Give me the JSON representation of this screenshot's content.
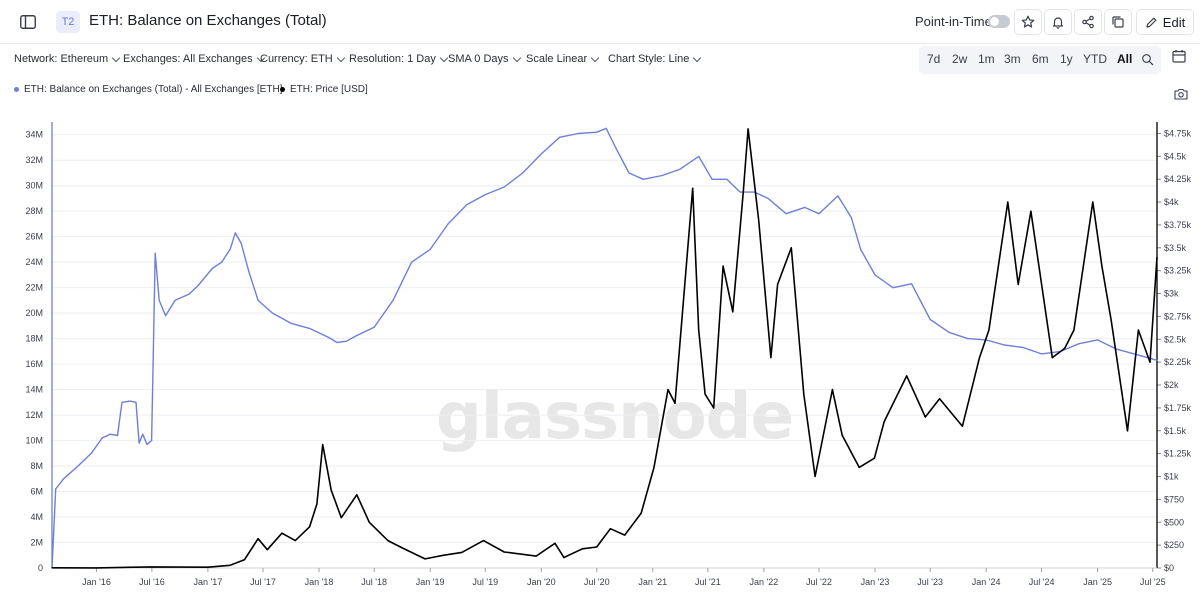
{
  "header": {
    "tier_badge": "T2",
    "title": "ETH: Balance on Exchanges (Total)",
    "point_in_time_label": "Point-in-Time",
    "point_in_time_enabled": false,
    "edit_label": "Edit"
  },
  "toolbar": {
    "filters": [
      {
        "key": "network",
        "label": "Network: Ethereum"
      },
      {
        "key": "exchanges",
        "label": "Exchanges: All Exchanges"
      },
      {
        "key": "currency",
        "label": "Currency: ETH"
      },
      {
        "key": "resolution",
        "label": "Resolution: 1 Day"
      },
      {
        "key": "sma",
        "label": "SMA 0 Days"
      },
      {
        "key": "scale",
        "label": "Scale Linear"
      },
      {
        "key": "chart_style",
        "label": "Chart Style: Line"
      }
    ],
    "ranges": [
      "7d",
      "2w",
      "1m",
      "3m",
      "6m",
      "1y",
      "YTD",
      "All"
    ],
    "active_range": "All"
  },
  "legend": [
    {
      "label": "ETH: Balance on Exchanges (Total) - All Exchanges [ETH]",
      "color": "#6f7fd8"
    },
    {
      "label": "ETH: Price [USD]",
      "color": "#000000"
    }
  ],
  "watermark": "glassnode",
  "colors": {
    "balance": "#6f7fd8",
    "price": "#000000",
    "grid": "#eceef2",
    "axis_text": "#3a3f4a"
  },
  "chart_data": {
    "type": "line",
    "x_start": "2015-08-08",
    "x_end": "2025-07-15",
    "x_ticks": [
      "Jan '16",
      "Jul '16",
      "Jan '17",
      "Jul '17",
      "Jan '18",
      "Jul '18",
      "Jan '19",
      "Jul '19",
      "Jan '20",
      "Jul '20",
      "Jan '21",
      "Jul '21",
      "Jan '22",
      "Jul '22",
      "Jan '23",
      "Jul '23",
      "Jan '24",
      "Jul '24",
      "Jan '25",
      "Jul '25"
    ],
    "x_tick_dates": [
      "2016-01-01",
      "2016-07-01",
      "2017-01-01",
      "2017-07-01",
      "2018-01-01",
      "2018-07-01",
      "2019-01-01",
      "2019-07-01",
      "2020-01-01",
      "2020-07-01",
      "2021-01-01",
      "2021-07-01",
      "2022-01-01",
      "2022-07-01",
      "2023-01-01",
      "2023-07-01",
      "2024-01-01",
      "2024-07-01",
      "2025-01-01",
      "2025-07-01"
    ],
    "y_left": {
      "min": 0,
      "max": 35000000,
      "ticks": [
        0,
        2000000,
        4000000,
        6000000,
        8000000,
        10000000,
        12000000,
        14000000,
        16000000,
        18000000,
        20000000,
        22000000,
        24000000,
        26000000,
        28000000,
        30000000,
        32000000,
        34000000
      ],
      "tick_labels": [
        "0",
        "2M",
        "4M",
        "6M",
        "8M",
        "10M",
        "12M",
        "14M",
        "16M",
        "18M",
        "20M",
        "22M",
        "24M",
        "26M",
        "28M",
        "30M",
        "32M",
        "34M"
      ]
    },
    "y_right": {
      "min": 0,
      "max": 4875,
      "ticks": [
        0,
        250,
        500,
        750,
        1000,
        1250,
        1500,
        1750,
        2000,
        2250,
        2500,
        2750,
        3000,
        3250,
        3500,
        3750,
        4000,
        4250,
        4500,
        4750
      ],
      "tick_labels": [
        "$0",
        "$250",
        "$500",
        "$750",
        "$1k",
        "$1.25k",
        "$1.5k",
        "$1.75k",
        "$2k",
        "$2.25k",
        "$2.5k",
        "$2.75k",
        "$3k",
        "$3.25k",
        "$3.5k",
        "$3.75k",
        "$4k",
        "$4.25k",
        "$4.5k",
        "$4.75k"
      ]
    },
    "grid": true,
    "series": [
      {
        "name": "ETH: Balance on Exchanges (Total) - All Exchanges [ETH]",
        "axis": "left",
        "points": [
          [
            "2015-08-08",
            0
          ],
          [
            "2015-08-20",
            6200000
          ],
          [
            "2015-09-15",
            7000000
          ],
          [
            "2015-11-01",
            8000000
          ],
          [
            "2015-12-15",
            9000000
          ],
          [
            "2016-01-20",
            10200000
          ],
          [
            "2016-02-15",
            10500000
          ],
          [
            "2016-03-10",
            10400000
          ],
          [
            "2016-03-25",
            13000000
          ],
          [
            "2016-04-20",
            13100000
          ],
          [
            "2016-05-10",
            13000000
          ],
          [
            "2016-05-20",
            9800000
          ],
          [
            "2016-06-01",
            10500000
          ],
          [
            "2016-06-15",
            9700000
          ],
          [
            "2016-06-30",
            10000000
          ],
          [
            "2016-07-05",
            16000000
          ],
          [
            "2016-07-12",
            24700000
          ],
          [
            "2016-07-25",
            21000000
          ],
          [
            "2016-08-15",
            19800000
          ],
          [
            "2016-09-15",
            21000000
          ],
          [
            "2016-11-01",
            21500000
          ],
          [
            "2016-12-01",
            22200000
          ],
          [
            "2017-01-15",
            23500000
          ],
          [
            "2017-02-15",
            24000000
          ],
          [
            "2017-03-15",
            25000000
          ],
          [
            "2017-04-01",
            26300000
          ],
          [
            "2017-04-20",
            25500000
          ],
          [
            "2017-05-15",
            23300000
          ],
          [
            "2017-06-15",
            21000000
          ],
          [
            "2017-08-01",
            20000000
          ],
          [
            "2017-10-01",
            19200000
          ],
          [
            "2017-12-01",
            18800000
          ],
          [
            "2018-02-01",
            18100000
          ],
          [
            "2018-03-01",
            17700000
          ],
          [
            "2018-04-01",
            17800000
          ],
          [
            "2018-05-01",
            18200000
          ],
          [
            "2018-07-01",
            18900000
          ],
          [
            "2018-09-01",
            21000000
          ],
          [
            "2018-11-01",
            24000000
          ],
          [
            "2019-01-01",
            25000000
          ],
          [
            "2019-03-01",
            27000000
          ],
          [
            "2019-05-01",
            28500000
          ],
          [
            "2019-07-01",
            29300000
          ],
          [
            "2019-09-01",
            29900000
          ],
          [
            "2019-11-01",
            31000000
          ],
          [
            "2020-01-01",
            32500000
          ],
          [
            "2020-03-01",
            33800000
          ],
          [
            "2020-05-01",
            34100000
          ],
          [
            "2020-07-01",
            34200000
          ],
          [
            "2020-08-01",
            34500000
          ],
          [
            "2020-09-01",
            33000000
          ],
          [
            "2020-10-15",
            31000000
          ],
          [
            "2020-12-01",
            30500000
          ],
          [
            "2021-02-01",
            30800000
          ],
          [
            "2021-04-01",
            31300000
          ],
          [
            "2021-06-01",
            32300000
          ],
          [
            "2021-07-15",
            30500000
          ],
          [
            "2021-09-01",
            30500000
          ],
          [
            "2021-10-15",
            29500000
          ],
          [
            "2021-12-01",
            29500000
          ],
          [
            "2022-01-15",
            29000000
          ],
          [
            "2022-03-15",
            27800000
          ],
          [
            "2022-05-15",
            28300000
          ],
          [
            "2022-07-01",
            27800000
          ],
          [
            "2022-09-01",
            29200000
          ],
          [
            "2022-10-15",
            27500000
          ],
          [
            "2022-11-15",
            25000000
          ],
          [
            "2023-01-01",
            23000000
          ],
          [
            "2023-03-01",
            22000000
          ],
          [
            "2023-05-01",
            22300000
          ],
          [
            "2023-07-01",
            19500000
          ],
          [
            "2023-09-01",
            18500000
          ],
          [
            "2023-11-01",
            18000000
          ],
          [
            "2024-01-01",
            17900000
          ],
          [
            "2024-03-01",
            17500000
          ],
          [
            "2024-05-01",
            17300000
          ],
          [
            "2024-07-01",
            16800000
          ],
          [
            "2024-09-01",
            17000000
          ],
          [
            "2024-11-01",
            17600000
          ],
          [
            "2025-01-01",
            17900000
          ],
          [
            "2025-03-01",
            17200000
          ],
          [
            "2025-05-01",
            16800000
          ],
          [
            "2025-07-15",
            16300000
          ]
        ]
      },
      {
        "name": "ETH: Price [USD]",
        "axis": "right",
        "points": [
          [
            "2015-08-08",
            2
          ],
          [
            "2016-01-01",
            1
          ],
          [
            "2016-07-01",
            12
          ],
          [
            "2017-01-01",
            9
          ],
          [
            "2017-03-15",
            30
          ],
          [
            "2017-05-01",
            90
          ],
          [
            "2017-06-15",
            320
          ],
          [
            "2017-07-15",
            200
          ],
          [
            "2017-09-01",
            380
          ],
          [
            "2017-10-15",
            300
          ],
          [
            "2017-12-01",
            450
          ],
          [
            "2017-12-25",
            700
          ],
          [
            "2018-01-13",
            1350
          ],
          [
            "2018-02-10",
            850
          ],
          [
            "2018-03-15",
            550
          ],
          [
            "2018-05-05",
            800
          ],
          [
            "2018-06-15",
            500
          ],
          [
            "2018-08-15",
            300
          ],
          [
            "2018-10-01",
            220
          ],
          [
            "2018-12-15",
            100
          ],
          [
            "2019-02-15",
            140
          ],
          [
            "2019-04-15",
            170
          ],
          [
            "2019-06-25",
            300
          ],
          [
            "2019-09-01",
            175
          ],
          [
            "2019-12-15",
            130
          ],
          [
            "2020-02-15",
            270
          ],
          [
            "2020-03-15",
            115
          ],
          [
            "2020-05-15",
            210
          ],
          [
            "2020-07-01",
            230
          ],
          [
            "2020-08-15",
            430
          ],
          [
            "2020-10-01",
            360
          ],
          [
            "2020-11-24",
            600
          ],
          [
            "2021-01-05",
            1100
          ],
          [
            "2021-02-20",
            1950
          ],
          [
            "2021-03-15",
            1800
          ],
          [
            "2021-05-12",
            4150
          ],
          [
            "2021-06-01",
            2600
          ],
          [
            "2021-06-22",
            1900
          ],
          [
            "2021-07-20",
            1750
          ],
          [
            "2021-08-20",
            3300
          ],
          [
            "2021-09-21",
            2800
          ],
          [
            "2021-10-25",
            4100
          ],
          [
            "2021-11-10",
            4800
          ],
          [
            "2021-12-15",
            3800
          ],
          [
            "2022-01-24",
            2300
          ],
          [
            "2022-02-15",
            3100
          ],
          [
            "2022-04-01",
            3500
          ],
          [
            "2022-05-12",
            1900
          ],
          [
            "2022-06-18",
            1000
          ],
          [
            "2022-08-14",
            1950
          ],
          [
            "2022-09-15",
            1450
          ],
          [
            "2022-11-10",
            1100
          ],
          [
            "2022-12-30",
            1200
          ],
          [
            "2023-01-31",
            1600
          ],
          [
            "2023-04-15",
            2100
          ],
          [
            "2023-06-15",
            1650
          ],
          [
            "2023-08-01",
            1850
          ],
          [
            "2023-10-15",
            1550
          ],
          [
            "2023-12-10",
            2300
          ],
          [
            "2024-01-10",
            2600
          ],
          [
            "2024-03-12",
            4000
          ],
          [
            "2024-04-15",
            3100
          ],
          [
            "2024-05-27",
            3900
          ],
          [
            "2024-08-05",
            2300
          ],
          [
            "2024-09-15",
            2400
          ],
          [
            "2024-10-15",
            2600
          ],
          [
            "2024-12-16",
            4000
          ],
          [
            "2025-01-15",
            3300
          ],
          [
            "2025-02-15",
            2700
          ],
          [
            "2025-04-09",
            1500
          ],
          [
            "2025-05-15",
            2600
          ],
          [
            "2025-06-22",
            2250
          ],
          [
            "2025-07-15",
            3400
          ]
        ]
      }
    ]
  }
}
